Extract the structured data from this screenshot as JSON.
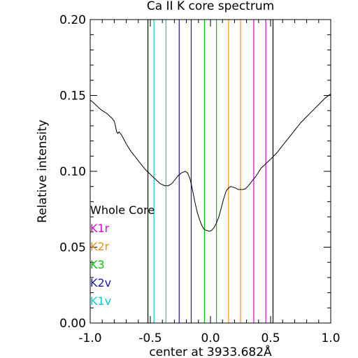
{
  "chart_data": {
    "type": "line",
    "title": "Ca II K core spectrum",
    "xlabel": "center at 3933.682Å",
    "ylabel": "Relative intensity",
    "xlim": [
      -1.0,
      1.0
    ],
    "ylim": [
      0.0,
      0.2
    ],
    "x_ticks": [
      "-1.0",
      "-0.5",
      "0.0",
      "0.5",
      "1.0"
    ],
    "y_ticks": [
      "0.00",
      "0.05",
      "0.10",
      "0.15",
      "0.20"
    ],
    "grid": false,
    "series": [
      {
        "name": "",
        "color": "#000000",
        "x": [
          -1.0,
          -0.97,
          -0.93,
          -0.9,
          -0.86,
          -0.82,
          -0.8,
          -0.79,
          -0.78,
          -0.77,
          -0.76,
          -0.74,
          -0.72,
          -0.7,
          -0.66,
          -0.62,
          -0.58,
          -0.54,
          -0.5,
          -0.46,
          -0.42,
          -0.38,
          -0.35,
          -0.32,
          -0.3,
          -0.27,
          -0.24,
          -0.21,
          -0.19,
          -0.17,
          -0.15,
          -0.13,
          -0.11,
          -0.09,
          -0.07,
          -0.05,
          -0.03,
          -0.01,
          0.01,
          0.03,
          0.05,
          0.07,
          0.09,
          0.11,
          0.13,
          0.15,
          0.17,
          0.19,
          0.21,
          0.23,
          0.25,
          0.27,
          0.29,
          0.31,
          0.34,
          0.38,
          0.42,
          0.46,
          0.5,
          0.55,
          0.6,
          0.65,
          0.7,
          0.75,
          0.8,
          0.85,
          0.9,
          0.95,
          1.0
        ],
        "y": [
          0.147,
          0.145,
          0.142,
          0.14,
          0.138,
          0.135,
          0.133,
          0.13,
          0.126,
          0.125,
          0.126,
          0.124,
          0.121,
          0.118,
          0.113,
          0.109,
          0.105,
          0.101,
          0.098,
          0.095,
          0.092,
          0.0905,
          0.0905,
          0.092,
          0.094,
          0.097,
          0.099,
          0.1,
          0.099,
          0.095,
          0.088,
          0.08,
          0.073,
          0.068,
          0.064,
          0.0615,
          0.061,
          0.0605,
          0.061,
          0.063,
          0.066,
          0.07,
          0.076,
          0.082,
          0.087,
          0.089,
          0.09,
          0.0895,
          0.089,
          0.088,
          0.088,
          0.088,
          0.0885,
          0.09,
          0.093,
          0.097,
          0.102,
          0.105,
          0.108,
          0.112,
          0.117,
          0.122,
          0.127,
          0.132,
          0.136,
          0.14,
          0.144,
          0.148,
          0.151
        ]
      }
    ],
    "vertical_lines": [
      {
        "x": -0.52,
        "color": "#000000"
      },
      {
        "x": 0.52,
        "color": "#000000"
      },
      {
        "x": -0.47,
        "color": "#00d0d0"
      },
      {
        "x": -0.37,
        "color": "#00d0d0"
      },
      {
        "x": -0.26,
        "color": "#1a1aa8"
      },
      {
        "x": -0.16,
        "color": "#1a1aa8"
      },
      {
        "x": -0.05,
        "color": "#00c800"
      },
      {
        "x": 0.05,
        "color": "#00c800"
      },
      {
        "x": 0.15,
        "color": "#f0901a"
      },
      {
        "x": 0.25,
        "color": "#f0901a"
      },
      {
        "x": 0.36,
        "color": "#e000e0"
      },
      {
        "x": 0.46,
        "color": "#e000e0"
      }
    ],
    "legend": {
      "placement": "left",
      "entries": [
        {
          "label": "Whole Core",
          "color": "#000000"
        },
        {
          "label": "K1r",
          "color": "#e000e0"
        },
        {
          "label": "K2r",
          "color": "#f0901a"
        },
        {
          "label": "K3",
          "color": "#00c800"
        },
        {
          "label": "K2v",
          "color": "#1a1aa8"
        },
        {
          "label": "K1v",
          "color": "#00d0d0"
        }
      ]
    }
  }
}
